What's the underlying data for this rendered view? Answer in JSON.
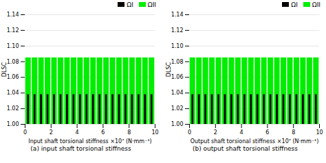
{
  "chart_data": [
    {
      "type": "bar",
      "xlabel": "Input shaft torsional stiffness ×10⁷ (N·mm⁻¹)",
      "ylabel": "DLSC",
      "caption": "(a) input shaft torsional stiffness",
      "x": [
        0.25,
        0.75,
        1.25,
        1.75,
        2.25,
        2.75,
        3.25,
        3.75,
        4.25,
        4.75,
        5.25,
        5.75,
        6.25,
        6.75,
        7.25,
        7.75,
        8.25,
        8.75,
        9.25,
        9.75
      ],
      "series": [
        {
          "name": "ΩI",
          "color": "#000000",
          "values": [
            1.038,
            1.038,
            1.038,
            1.038,
            1.038,
            1.038,
            1.038,
            1.038,
            1.038,
            1.038,
            1.038,
            1.038,
            1.038,
            1.038,
            1.038,
            1.038,
            1.038,
            1.038,
            1.038,
            1.038
          ]
        },
        {
          "name": "ΩII",
          "color": "#00ee00",
          "values": [
            1.085,
            1.085,
            1.085,
            1.085,
            1.085,
            1.085,
            1.085,
            1.085,
            1.085,
            1.085,
            1.085,
            1.085,
            1.085,
            1.085,
            1.085,
            1.085,
            1.085,
            1.085,
            1.085,
            1.085
          ]
        }
      ],
      "xlim": [
        0,
        10
      ],
      "xticks": [
        0,
        2,
        4,
        6,
        8,
        10
      ],
      "ylim": [
        1.0,
        1.14
      ],
      "yticks": [
        {
          "value": 1.0,
          "label": "1.00"
        },
        1.02,
        1.04,
        1.06,
        1.08,
        {
          "value": 1.1,
          "label": "1.10"
        },
        1.12,
        1.14
      ],
      "grid": true,
      "legend": "upper right"
    },
    {
      "type": "bar",
      "xlabel": "Output shaft torsional stiffness ×10⁷ (N·mm⁻¹)",
      "ylabel": "DLSC",
      "caption": "(b) output shaft torsional stiffness",
      "x": [
        0.25,
        0.75,
        1.25,
        1.75,
        2.25,
        2.75,
        3.25,
        3.75,
        4.25,
        4.75,
        5.25,
        5.75,
        6.25,
        6.75,
        7.25,
        7.75,
        8.25,
        8.75,
        9.25,
        9.75
      ],
      "series": [
        {
          "name": "ΩI",
          "color": "#000000",
          "values": [
            1.038,
            1.038,
            1.038,
            1.038,
            1.038,
            1.038,
            1.038,
            1.038,
            1.038,
            1.038,
            1.038,
            1.038,
            1.038,
            1.038,
            1.038,
            1.038,
            1.038,
            1.038,
            1.038,
            1.038
          ]
        },
        {
          "name": "ΩII",
          "color": "#00ee00",
          "values": [
            1.085,
            1.085,
            1.085,
            1.085,
            1.085,
            1.085,
            1.085,
            1.085,
            1.085,
            1.085,
            1.085,
            1.085,
            1.085,
            1.085,
            1.085,
            1.085,
            1.085,
            1.085,
            1.085,
            1.085
          ]
        }
      ],
      "xlim": [
        0,
        10
      ],
      "xticks": [
        0,
        2,
        4,
        6,
        8,
        10
      ],
      "ylim": [
        1.0,
        1.14
      ],
      "yticks": [
        {
          "value": 1.0,
          "label": "1.00"
        },
        1.02,
        1.04,
        1.06,
        1.08,
        {
          "value": 1.1,
          "label": "1.10"
        },
        1.12,
        1.14
      ],
      "grid": true,
      "legend": "upper right"
    }
  ]
}
